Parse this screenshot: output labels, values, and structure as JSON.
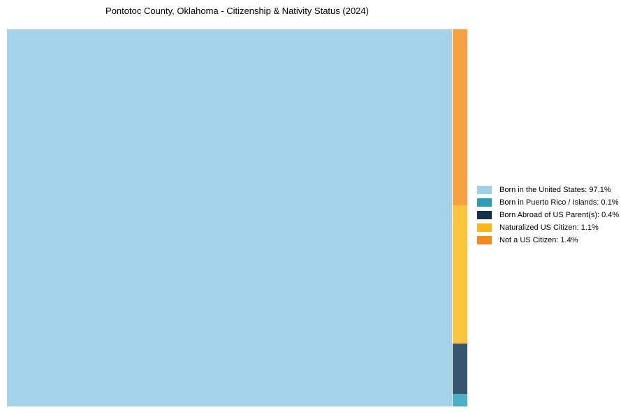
{
  "title": "Pontotoc County, Oklahoma - Citizenship & Nativity Status (2024)",
  "colors": {
    "background": "#ffffff",
    "title_text": "#000000",
    "legend_text": "#000000"
  },
  "chart_data": {
    "type": "treemap",
    "title": "Pontotoc County, Oklahoma - Citizenship & Nativity Status (2024)",
    "categories": [
      "Born in the United States",
      "Born in Puerto Rico / Islands",
      "Born Abroad of US Parent(s)",
      "Naturalized US Citizen",
      "Not a US Citizen"
    ],
    "values": [
      97.1,
      0.1,
      0.4,
      1.1,
      1.4
    ],
    "unit": "%",
    "legend_position": "right",
    "main_segment": {
      "name": "Born in the United States",
      "value": 97.1,
      "color": "#a5d3ea"
    },
    "column_segments": [
      {
        "name": "Not a US Citizen",
        "value": 1.4,
        "color": "#f9a041"
      },
      {
        "name": "Naturalized US Citizen",
        "value": 1.1,
        "color": "#fdc53d"
      },
      {
        "name": "Born Abroad of US Parent(s)",
        "value": 0.4,
        "color": "#35566c"
      },
      {
        "name": "Born in Puerto Rico / Islands",
        "value": 0.1,
        "color": "#49b0c5"
      }
    ]
  },
  "legend": {
    "items": [
      {
        "label": "Born in the United States: 97.1%",
        "color": "#9ed0e8"
      },
      {
        "label": "Born in Puerto Rico / Islands: 0.1%",
        "color": "#2b9db9"
      },
      {
        "label": "Born Abroad of US Parent(s): 0.4%",
        "color": "#0f3349"
      },
      {
        "label": "Naturalized US Citizen: 1.1%",
        "color": "#fcb814"
      },
      {
        "label": "Not a US Citizen: 1.4%",
        "color": "#f68b1d"
      }
    ]
  }
}
